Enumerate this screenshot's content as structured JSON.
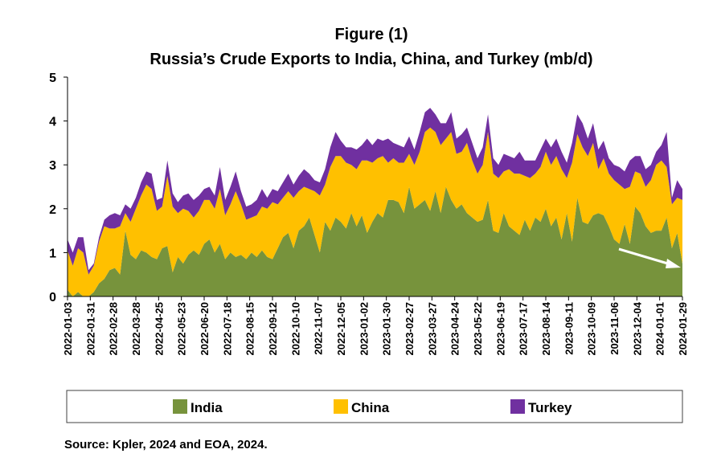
{
  "chart_data": {
    "type": "area",
    "title": "Figure (1)",
    "subtitle": "Russia’s Crude Exports to India, China, and Turkey (mb/d)",
    "xlabel": "",
    "ylabel": "",
    "ylim": [
      0,
      5
    ],
    "yticks": [
      "0",
      "1",
      "2",
      "3",
      "4",
      "5"
    ],
    "stacked": true,
    "legend_position": "bottom",
    "x_tick_labels": [
      "2022-01-03",
      "2022-01-31",
      "2022-02-28",
      "2022-03-28",
      "2022-04-25",
      "2022-05-23",
      "2022-06-20",
      "2022-07-18",
      "2022-08-15",
      "2022-09-12",
      "2022-10-10",
      "2022-11-07",
      "2022-12-05",
      "2023-01-02",
      "2023-01-30",
      "2023-02-27",
      "2023-03-27",
      "2023-04-24",
      "2023-05-22",
      "2023-06-19",
      "2023-07-17",
      "2023-08-14",
      "2023-09-11",
      "2023-10-09",
      "2023-11-06",
      "2023-12-04",
      "2024-01-01",
      "2024-01-29"
    ],
    "series": [
      {
        "name": "India",
        "color": "#77933c",
        "values": [
          0.15,
          0,
          0.1,
          0,
          0,
          0.1,
          0.3,
          0.4,
          0.6,
          0.65,
          0.5,
          1.5,
          0.95,
          0.85,
          1.05,
          1.0,
          0.9,
          0.85,
          1.1,
          1.15,
          0.55,
          0.9,
          0.75,
          0.95,
          1.05,
          0.95,
          1.2,
          1.3,
          1.0,
          1.2,
          0.85,
          1.0,
          0.9,
          0.95,
          0.85,
          1.0,
          0.9,
          1.05,
          0.9,
          0.85,
          1.1,
          1.35,
          1.45,
          1.1,
          1.5,
          1.6,
          1.8,
          1.4,
          1.0,
          1.7,
          1.5,
          1.8,
          1.7,
          1.55,
          1.9,
          1.6,
          1.85,
          1.45,
          1.7,
          1.9,
          1.8,
          2.2,
          2.2,
          2.15,
          1.9,
          2.5,
          2.0,
          2.1,
          2.2,
          1.95,
          2.4,
          1.9,
          2.5,
          2.2,
          2.0,
          2.1,
          1.9,
          1.8,
          1.7,
          1.75,
          2.2,
          1.5,
          1.45,
          1.9,
          1.6,
          1.5,
          1.4,
          1.75,
          1.5,
          1.8,
          1.7,
          2.0,
          1.6,
          1.8,
          1.3,
          1.9,
          1.25,
          2.25,
          1.7,
          1.65,
          1.85,
          1.9,
          1.85,
          1.6,
          1.3,
          1.2,
          1.65,
          1.2,
          2.05,
          1.9,
          1.6,
          1.45,
          1.5,
          1.5,
          1.8,
          1.1,
          1.45,
          0.75
        ]
      },
      {
        "name": "China",
        "color": "#ffc000",
        "values": [
          0.9,
          0.7,
          1.0,
          1.0,
          0.5,
          0.6,
          0.95,
          1.2,
          0.95,
          0.9,
          1.1,
          0.4,
          0.75,
          1.15,
          1.25,
          1.55,
          1.55,
          1.1,
          0.95,
          1.6,
          1.5,
          1.0,
          1.25,
          1.0,
          0.75,
          1.0,
          1.0,
          0.9,
          1.0,
          1.25,
          1.0,
          1.1,
          1.5,
          1.15,
          0.9,
          0.8,
          0.95,
          1.0,
          1.1,
          1.3,
          1.0,
          0.9,
          0.95,
          1.15,
          0.9,
          0.9,
          0.65,
          1.0,
          1.3,
          0.85,
          1.45,
          1.4,
          1.5,
          1.5,
          1.1,
          1.3,
          1.25,
          1.65,
          1.35,
          1.25,
          1.4,
          0.85,
          0.95,
          0.9,
          1.15,
          0.75,
          1.0,
          1.2,
          1.55,
          1.9,
          1.35,
          1.55,
          1.1,
          1.55,
          1.25,
          1.2,
          1.6,
          1.3,
          1.1,
          1.25,
          1.55,
          1.3,
          1.25,
          0.95,
          1.3,
          1.3,
          1.4,
          1.0,
          1.2,
          1.0,
          1.25,
          1.3,
          1.4,
          1.4,
          1.6,
          0.8,
          1.8,
          1.45,
          1.7,
          1.55,
          1.65,
          1.0,
          1.3,
          1.2,
          1.35,
          1.35,
          0.8,
          1.3,
          0.8,
          0.9,
          0.9,
          1.2,
          1.5,
          1.6,
          1.15,
          1.0,
          0.8,
          1.45
        ]
      },
      {
        "name": "Turkey",
        "color": "#7030a0",
        "values": [
          0.25,
          0.3,
          0.25,
          0.35,
          0.1,
          0.05,
          0.1,
          0.15,
          0.3,
          0.35,
          0.25,
          0.2,
          0.3,
          0.25,
          0.3,
          0.3,
          0.35,
          0.25,
          0.2,
          0.35,
          0.3,
          0.25,
          0.3,
          0.4,
          0.4,
          0.35,
          0.25,
          0.3,
          0.3,
          0.5,
          0.35,
          0.4,
          0.45,
          0.3,
          0.3,
          0.3,
          0.35,
          0.4,
          0.25,
          0.3,
          0.3,
          0.35,
          0.4,
          0.3,
          0.35,
          0.4,
          0.35,
          0.25,
          0.3,
          0.35,
          0.45,
          0.55,
          0.35,
          0.35,
          0.4,
          0.45,
          0.35,
          0.5,
          0.4,
          0.45,
          0.35,
          0.55,
          0.35,
          0.4,
          0.35,
          0.4,
          0.35,
          0.45,
          0.45,
          0.45,
          0.4,
          0.5,
          0.35,
          0.45,
          0.35,
          0.4,
          0.35,
          0.4,
          0.35,
          0.4,
          0.4,
          0.35,
          0.3,
          0.4,
          0.3,
          0.35,
          0.5,
          0.35,
          0.4,
          0.3,
          0.4,
          0.3,
          0.4,
          0.4,
          0.4,
          0.35,
          0.45,
          0.45,
          0.55,
          0.4,
          0.45,
          0.45,
          0.4,
          0.35,
          0.35,
          0.4,
          0.4,
          0.6,
          0.35,
          0.4,
          0.4,
          0.35,
          0.3,
          0.35,
          0.8,
          0.15,
          0.4,
          0.25
        ]
      }
    ],
    "annotation": "white-arrow-downward-trend"
  },
  "footer": {
    "source": "Source: Kpler, 2024 and EOA, 2024."
  }
}
